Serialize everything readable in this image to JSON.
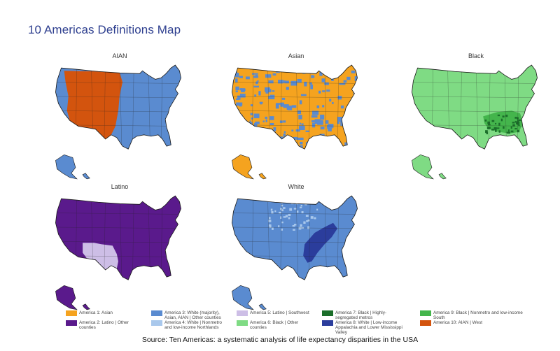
{
  "title": "10 Americas Definitions Map",
  "source": "Source: Ten Americas: a systematic analysis of life expectancy disparities in the USA",
  "colors": {
    "america1": "#f5a31f",
    "america2": "#5a1a8c",
    "america3": "#5a8bd0",
    "america4": "#a9c8ec",
    "america5": "#cdbee6",
    "america6": "#7fdb84",
    "america7": "#1b6e2a",
    "america8": "#2b3d9c",
    "america9": "#44b54c",
    "america10": "#d3540e"
  },
  "maps": [
    {
      "label": "AIAN",
      "base": "america3",
      "overlay": "america10",
      "overlay_style": "region-west",
      "dots": "none"
    },
    {
      "label": "Asian",
      "base": "america1",
      "overlay": "america3",
      "overlay_style": "scatter",
      "dots": "america3"
    },
    {
      "label": "Black",
      "base": "america6",
      "overlay": "america9",
      "overlay_style": "region-south",
      "dots": "america7"
    },
    {
      "label": "Latino",
      "base": "america2",
      "overlay": "america5",
      "overlay_style": "region-southwest",
      "dots": "none"
    },
    {
      "label": "White",
      "base": "america3",
      "overlay": "america8",
      "overlay_style": "region-appalachia",
      "dots": "america4"
    }
  ],
  "legend": [
    {
      "label": "America 1: Asian",
      "color": "america1"
    },
    {
      "label": "America 2: Latino | Other counties",
      "color": "america2"
    },
    {
      "label": "America 3: White (majority), Asian, AIAN | Other counties",
      "color": "america3"
    },
    {
      "label": "America 4: White | Nonmetro and low-income Northlands",
      "color": "america4"
    },
    {
      "label": "America 5: Latino | Southwest",
      "color": "america5"
    },
    {
      "label": "America 6: Black | Other counties",
      "color": "america6"
    },
    {
      "label": "America 7: Black | Highly-segregated metros",
      "color": "america7"
    },
    {
      "label": "America 8: White | Low-income Appalachia and Lower Mississippi Valley",
      "color": "america8"
    },
    {
      "label": "America 9: Black | Nonmetro and low-income South",
      "color": "america9"
    },
    {
      "label": "America 10: AIAN | West",
      "color": "america10"
    }
  ]
}
